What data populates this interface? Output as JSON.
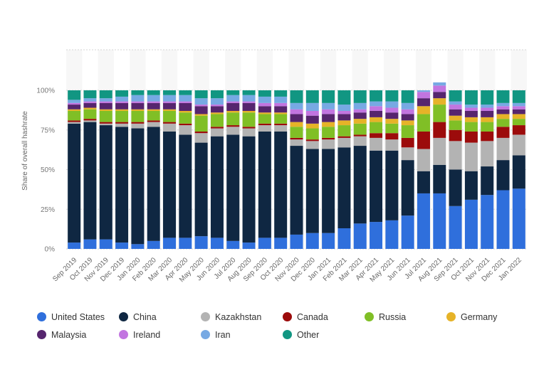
{
  "chart_data": {
    "type": "bar",
    "stacked": true,
    "ylabel": "Share of overall hashrate",
    "xlabel": "",
    "ylim": [
      0,
      100
    ],
    "yticks": [
      "0%",
      "25%",
      "50%",
      "75%",
      "100%"
    ],
    "grid": true,
    "legend_position": "bottom",
    "categories": [
      "Sep 2019",
      "Oct 2019",
      "Nov 2019",
      "Dec 2019",
      "Jan 2020",
      "Feb 2020",
      "Mar 2020",
      "Apr 2020",
      "May 2020",
      "Jun 2020",
      "Jul 2020",
      "Aug 2020",
      "Sep 2020",
      "Oct 2020",
      "Nov 2020",
      "Dec 2020",
      "Jan 2021",
      "Feb 2021",
      "Mar 2021",
      "Apr 2021",
      "May 2021",
      "Jun 2021",
      "Jul 2021",
      "Aug 2021",
      "Sep 2021",
      "Oct 2021",
      "Nov 2021",
      "Dec 2021",
      "Jan 2022"
    ],
    "series": [
      {
        "name": "United States",
        "color": "#2f6fdc",
        "values": [
          4,
          6,
          6,
          4,
          3,
          5,
          7,
          7,
          8,
          7,
          5,
          4,
          7,
          7,
          9,
          10,
          10,
          13,
          16,
          17,
          18,
          21,
          35,
          35,
          27,
          31,
          34,
          37,
          38
        ]
      },
      {
        "name": "China",
        "color": "#0f2742",
        "values": [
          75,
          74,
          72,
          73,
          73,
          72,
          67,
          65,
          59,
          64,
          67,
          67,
          67,
          67,
          56,
          53,
          53,
          51,
          49,
          45,
          44,
          35,
          14,
          18,
          23,
          18,
          18,
          19,
          21
        ]
      },
      {
        "name": "Kazakhstan",
        "color": "#b3b3b3",
        "values": [
          1,
          1,
          1,
          2,
          3,
          3,
          5,
          6,
          6,
          5,
          5,
          5,
          4,
          4,
          4,
          5,
          6,
          6,
          6,
          8,
          7,
          8,
          14,
          17,
          18,
          18,
          16,
          14,
          13
        ]
      },
      {
        "name": "Canada",
        "color": "#9c0b0b",
        "values": [
          1,
          1,
          1,
          1,
          1,
          1,
          1,
          1,
          1,
          1,
          1,
          1,
          1,
          1,
          1,
          1,
          1,
          1,
          1,
          3,
          4,
          6,
          11,
          10,
          7,
          7,
          6,
          7,
          6
        ]
      },
      {
        "name": "Russia",
        "color": "#80bf26",
        "values": [
          6,
          6,
          7,
          7,
          7,
          6,
          7,
          7,
          10,
          8,
          8,
          9,
          6,
          6,
          7,
          7,
          7,
          7,
          7,
          7,
          6,
          8,
          11,
          11,
          6,
          6,
          6,
          5,
          4
        ]
      },
      {
        "name": "Germany",
        "color": "#e6b328",
        "values": [
          1,
          1,
          1,
          1,
          1,
          1,
          1,
          1,
          1,
          1,
          1,
          1,
          1,
          1,
          3,
          3,
          3,
          3,
          3,
          3,
          3,
          3,
          5,
          4,
          3,
          3,
          3,
          3,
          3
        ]
      },
      {
        "name": "Malaysia",
        "color": "#56256e",
        "values": [
          3,
          3,
          4,
          4,
          4,
          4,
          4,
          5,
          5,
          4,
          5,
          5,
          4,
          4,
          5,
          5,
          5,
          4,
          4,
          4,
          4,
          4,
          5,
          4,
          4,
          4,
          4,
          3,
          3
        ]
      },
      {
        "name": "Ireland",
        "color": "#c275e0",
        "values": [
          1,
          1,
          1,
          1,
          1,
          1,
          1,
          1,
          1,
          1,
          1,
          1,
          2,
          2,
          3,
          3,
          3,
          2,
          2,
          3,
          3,
          3,
          4,
          4,
          3,
          2,
          2,
          2,
          2
        ]
      },
      {
        "name": "Iran",
        "color": "#77a9e3",
        "values": [
          2,
          2,
          2,
          3,
          4,
          4,
          4,
          4,
          4,
          4,
          4,
          4,
          4,
          4,
          4,
          5,
          4,
          4,
          4,
          3,
          4,
          4,
          1,
          2,
          2,
          2,
          2,
          2,
          2
        ]
      },
      {
        "name": "Other",
        "color": "#119682",
        "values": [
          6,
          5,
          5,
          4,
          3,
          3,
          3,
          3,
          5,
          5,
          3,
          3,
          4,
          4,
          8,
          8,
          8,
          9,
          8,
          7,
          7,
          8,
          0,
          0,
          7,
          9,
          9,
          8,
          8
        ]
      }
    ]
  }
}
